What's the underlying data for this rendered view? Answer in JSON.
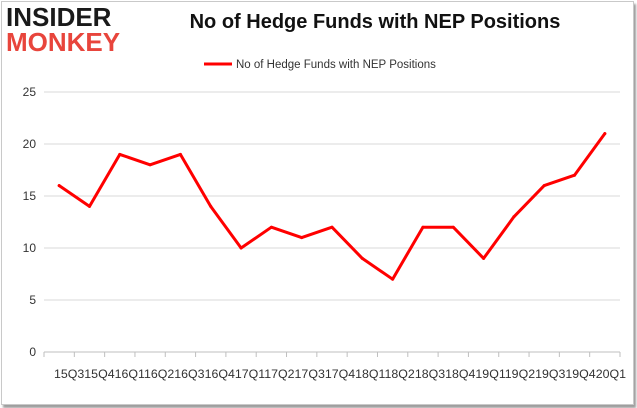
{
  "brand": {
    "logo_top": "INSIDER",
    "logo_bottom": "MONKEY"
  },
  "chart_data": {
    "type": "line",
    "title": "No of Hedge Funds with NEP Positions",
    "categories": [
      "Q3 2015",
      "Q4 2015",
      "Q1 2016",
      "Q2 2016",
      "Q3 2016",
      "Q4 2016",
      "Q1 2017",
      "Q2 2017",
      "Q3 2017",
      "Q4 2017",
      "Q1 2018",
      "Q2 2018",
      "Q3 2018",
      "Q4 2018",
      "Q1 2019",
      "Q2 2019",
      "Q3 2019",
      "Q4 2019",
      "Q1 2020"
    ],
    "x_tick_text": "15Q315Q416Q116Q216Q316Q417Q117Q217Q317Q418Q118Q218Q318Q419Q119Q219Q319Q420Q1",
    "series": [
      {
        "name": "No of Hedge Funds with NEP Positions",
        "color": "#ff0000",
        "values": [
          16,
          14,
          19,
          18,
          19,
          14,
          10,
          12,
          11,
          12,
          9,
          7,
          12,
          12,
          9,
          13,
          16,
          17,
          21
        ]
      }
    ],
    "ylim": [
      0,
      25
    ],
    "yticks": [
      0,
      5,
      10,
      15,
      20,
      25
    ],
    "grid": true,
    "legend": "top"
  }
}
